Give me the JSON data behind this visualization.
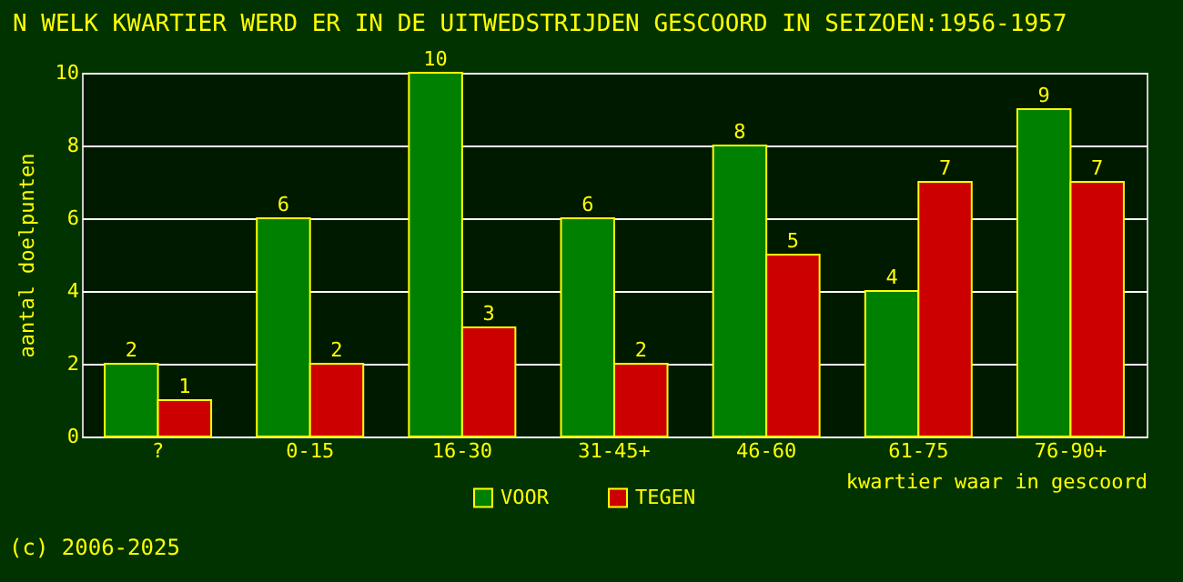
{
  "chart_data": {
    "type": "bar",
    "title": "N WELK KWARTIER WERD ER IN DE UITWEDSTRIJDEN GESCOORD IN SEIZOEN:1956-1957",
    "xlabel": "kwartier waar in gescoord",
    "ylabel": "aantal doelpunten",
    "categories": [
      "?",
      "0-15",
      "16-30",
      "31-45+",
      "46-60",
      "61-75",
      "76-90+"
    ],
    "series": [
      {
        "name": "VOOR",
        "color": "#008000",
        "values": [
          2,
          6,
          10,
          6,
          8,
          4,
          9
        ]
      },
      {
        "name": "TEGEN",
        "color": "#cc0000",
        "values": [
          1,
          2,
          3,
          2,
          5,
          7,
          7
        ]
      }
    ],
    "ylim": [
      0,
      10
    ],
    "yticks": [
      0,
      2,
      4,
      6,
      8,
      10
    ],
    "grid": "y",
    "legend": "bottom",
    "data_labels": true,
    "annotations": [
      "(c) 2006-2025"
    ]
  }
}
